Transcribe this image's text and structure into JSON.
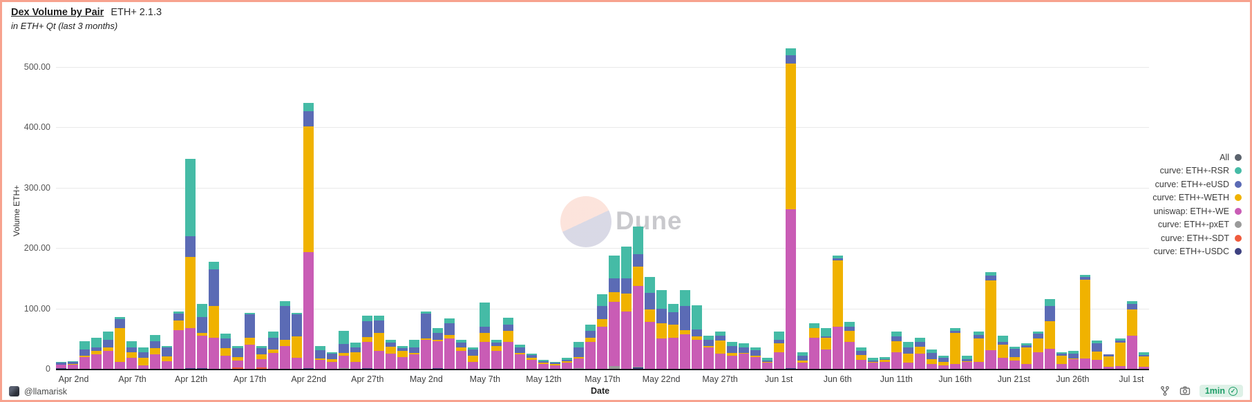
{
  "header": {
    "title": "Dex Volume by Pair",
    "version": "ETH+ 2.1.3",
    "subtitle": "in ETH+ Qt (last 3 months)"
  },
  "watermark": {
    "text": "Dune"
  },
  "footer": {
    "author_handle": "@llamarisk",
    "refresh_badge": "1min",
    "check_glyph": "✓"
  },
  "legend": {
    "items": [
      {
        "label": "All",
        "color": "#5b636d"
      },
      {
        "label": "curve: ETH+-RSR",
        "color": "#45bba6"
      },
      {
        "label": "curve: ETH+-eUSD",
        "color": "#5b6bb5"
      },
      {
        "label": "curve: ETH+-WETH",
        "color": "#f0b200"
      },
      {
        "label": "uniswap: ETH+-WE",
        "color": "#c95cb5"
      },
      {
        "label": "curve: ETH+-pxET",
        "color": "#9a9a9a"
      },
      {
        "label": "curve: ETH+-SDT",
        "color": "#ef5b3d"
      },
      {
        "label": "curve: ETH+-USDC",
        "color": "#3d4180"
      }
    ]
  },
  "chart_data": {
    "type": "bar",
    "stacked": true,
    "title": "Dex Volume by Pair ETH+ 2.1.3",
    "subtitle": "in ETH+ Qt (last 3 months)",
    "xlabel": "Date",
    "ylabel": "Volume ETH+",
    "ylim": [
      0,
      550
    ],
    "grid": true,
    "legend_position": "right",
    "yticks": [
      {
        "value": 0,
        "label": "0"
      },
      {
        "value": 100,
        "label": "100.00"
      },
      {
        "value": 200,
        "label": "200.00"
      },
      {
        "value": 300,
        "label": "300.00"
      },
      {
        "value": 400,
        "label": "400.00"
      },
      {
        "value": 500,
        "label": "500.00"
      }
    ],
    "x_ticks": [
      {
        "index": 1,
        "label": "Apr 2nd"
      },
      {
        "index": 6,
        "label": "Apr 7th"
      },
      {
        "index": 11,
        "label": "Apr 12th"
      },
      {
        "index": 16,
        "label": "Apr 17th"
      },
      {
        "index": 21,
        "label": "Apr 22nd"
      },
      {
        "index": 26,
        "label": "Apr 27th"
      },
      {
        "index": 31,
        "label": "May 2nd"
      },
      {
        "index": 36,
        "label": "May 7th"
      },
      {
        "index": 41,
        "label": "May 12th"
      },
      {
        "index": 46,
        "label": "May 17th"
      },
      {
        "index": 51,
        "label": "May 22nd"
      },
      {
        "index": 56,
        "label": "May 27th"
      },
      {
        "index": 61,
        "label": "Jun 1st"
      },
      {
        "index": 66,
        "label": "Jun 6th"
      },
      {
        "index": 71,
        "label": "Jun 11th"
      },
      {
        "index": 76,
        "label": "Jun 16th"
      },
      {
        "index": 81,
        "label": "Jun 21st"
      },
      {
        "index": 86,
        "label": "Jun 26th"
      },
      {
        "index": 91,
        "label": "Jul 1st"
      }
    ],
    "dates": [
      "Apr 1",
      "Apr 2",
      "Apr 3",
      "Apr 4",
      "Apr 5",
      "Apr 6",
      "Apr 7",
      "Apr 8",
      "Apr 9",
      "Apr 10",
      "Apr 11",
      "Apr 12",
      "Apr 13",
      "Apr 14",
      "Apr 15",
      "Apr 16",
      "Apr 17",
      "Apr 18",
      "Apr 19",
      "Apr 20",
      "Apr 21",
      "Apr 22",
      "Apr 23",
      "Apr 24",
      "Apr 25",
      "Apr 26",
      "Apr 27",
      "Apr 28",
      "Apr 29",
      "Apr 30",
      "May 1",
      "May 2",
      "May 3",
      "May 4",
      "May 5",
      "May 6",
      "May 7",
      "May 8",
      "May 9",
      "May 10",
      "May 11",
      "May 12",
      "May 13",
      "May 14",
      "May 15",
      "May 16",
      "May 17",
      "May 18",
      "May 19",
      "May 20",
      "May 21",
      "May 22",
      "May 23",
      "May 24",
      "May 25",
      "May 26",
      "May 27",
      "May 28",
      "May 29",
      "May 30",
      "May 31",
      "Jun 1",
      "Jun 2",
      "Jun 3",
      "Jun 4",
      "Jun 5",
      "Jun 6",
      "Jun 7",
      "Jun 8",
      "Jun 9",
      "Jun 10",
      "Jun 11",
      "Jun 12",
      "Jun 13",
      "Jun 14",
      "Jun 15",
      "Jun 16",
      "Jun 17",
      "Jun 18",
      "Jun 19",
      "Jun 20",
      "Jun 21",
      "Jun 22",
      "Jun 23",
      "Jun 24",
      "Jun 25",
      "Jun 26",
      "Jun 27",
      "Jun 28",
      "Jun 29",
      "Jun 30",
      "Jul 1",
      "Jul 2"
    ],
    "series": [
      {
        "name": "curve: ETH+-USDC",
        "color": "#3d4180",
        "values": [
          1,
          0,
          0,
          0,
          0,
          0,
          0,
          0,
          0,
          0,
          0,
          1,
          1,
          0,
          0,
          0,
          0,
          0,
          0,
          0,
          0,
          1,
          0,
          0,
          0,
          0,
          1,
          0,
          0,
          0,
          0,
          0,
          1,
          0,
          0,
          0,
          0,
          0,
          0,
          0,
          0,
          0,
          0,
          0,
          0,
          0,
          0,
          0,
          0,
          2,
          0,
          0,
          0,
          0,
          0,
          0,
          0,
          0,
          0,
          0,
          0,
          0,
          1,
          0,
          0,
          0,
          0,
          0,
          0,
          0,
          0,
          0,
          0,
          0,
          0,
          0,
          0,
          0,
          0,
          0,
          0,
          0,
          0,
          0,
          0,
          0,
          0,
          0,
          0,
          0,
          0,
          0,
          0
        ]
      },
      {
        "name": "curve: ETH+-SDT",
        "color": "#ef5b3d",
        "values": [
          0,
          0,
          0,
          0,
          0,
          0,
          0,
          0,
          0,
          0,
          0,
          0,
          0,
          0,
          0,
          2,
          0,
          2,
          0,
          0,
          0,
          0,
          0,
          0,
          0,
          0,
          0,
          0,
          0,
          0,
          0,
          0,
          0,
          0,
          0,
          0,
          0,
          0,
          0,
          0,
          0,
          0,
          0,
          0,
          0,
          0,
          0,
          0,
          0,
          0,
          0,
          0,
          0,
          0,
          0,
          0,
          0,
          0,
          0,
          0,
          0,
          0,
          0,
          0,
          0,
          0,
          0,
          0,
          0,
          0,
          0,
          0,
          0,
          0,
          0,
          0,
          0,
          0,
          0,
          0,
          0,
          0,
          0,
          0,
          0,
          0,
          0,
          0,
          0,
          0,
          0,
          0,
          0
        ]
      },
      {
        "name": "curve: ETH+-pxETH",
        "color": "#9a9a9a",
        "values": [
          0,
          0,
          0,
          0,
          0,
          0,
          0,
          0,
          0,
          0,
          0,
          0,
          0,
          0,
          0,
          0,
          0,
          0,
          0,
          0,
          0,
          0,
          0,
          0,
          1,
          0,
          0,
          0,
          0,
          0,
          0,
          0,
          0,
          0,
          0,
          0,
          0,
          0,
          0,
          0,
          0,
          0,
          0,
          0,
          1,
          0,
          0,
          5,
          0,
          1,
          0,
          0,
          0,
          0,
          0,
          0,
          0,
          0,
          0,
          0,
          0,
          0,
          0,
          0,
          0,
          0,
          0,
          0,
          0,
          0,
          0,
          0,
          0,
          0,
          0,
          0,
          0,
          0,
          0,
          0,
          0,
          0,
          0,
          0,
          0,
          0,
          0,
          0,
          0,
          0,
          0,
          0,
          0
        ]
      },
      {
        "name": "uniswap: ETH+-WETH",
        "color": "#c95cb5",
        "values": [
          6,
          7,
          20,
          24,
          30,
          12,
          18,
          6,
          24,
          13,
          64,
          67,
          54,
          52,
          22,
          12,
          40,
          14,
          26,
          38,
          18,
          192,
          15,
          12,
          21,
          12,
          44,
          30,
          25,
          20,
          24,
          48,
          45,
          50,
          30,
          12,
          45,
          30,
          45,
          24,
          15,
          8,
          6,
          10,
          16,
          45,
          70,
          106,
          95,
          134,
          78,
          50,
          52,
          57,
          48,
          35,
          25,
          22,
          25,
          20,
          10,
          28,
          263,
          10,
          52,
          32,
          70,
          45,
          15,
          10,
          12,
          28,
          10,
          25,
          8,
          6,
          8,
          12,
          12,
          31,
          18,
          14,
          8,
          28,
          33,
          8,
          16,
          17,
          15,
          3,
          5,
          55,
          3
        ]
      },
      {
        "name": "curve: ETH+-WETH",
        "color": "#f0b200",
        "values": [
          0,
          1,
          2,
          6,
          6,
          56,
          10,
          12,
          10,
          8,
          16,
          117,
          5,
          52,
          12,
          6,
          12,
          8,
          6,
          10,
          36,
          208,
          2,
          4,
          4,
          16,
          8,
          30,
          12,
          10,
          2,
          2,
          2,
          6,
          6,
          10,
          15,
          8,
          18,
          2,
          3,
          2,
          2,
          3,
          3,
          6,
          12,
          16,
          30,
          32,
          20,
          25,
          21,
          7,
          6,
          3,
          22,
          4,
          1,
          2,
          1,
          14,
          241,
          4,
          15,
          20,
          110,
          18,
          8,
          2,
          3,
          18,
          15,
          12,
          8,
          6,
          52,
          1,
          38,
          115,
          22,
          5,
          28,
          22,
          46,
          14,
          1,
          130,
          14,
          18,
          38,
          43,
          18
        ]
      },
      {
        "name": "curve: ETH+-eUSD",
        "color": "#5b6bb5",
        "values": [
          3,
          3,
          10,
          6,
          12,
          14,
          8,
          10,
          12,
          15,
          12,
          35,
          26,
          61,
          16,
          14,
          38,
          10,
          20,
          56,
          36,
          25,
          14,
          9,
          15,
          8,
          26,
          20,
          6,
          4,
          10,
          42,
          12,
          20,
          8,
          10,
          10,
          6,
          10,
          9,
          5,
          3,
          2,
          2,
          16,
          12,
          22,
          23,
          25,
          21,
          28,
          25,
          21,
          40,
          11,
          10,
          8,
          12,
          10,
          9,
          3,
          6,
          14,
          8,
          0,
          2,
          3,
          7,
          7,
          2,
          1,
          8,
          10,
          8,
          10,
          6,
          3,
          3,
          6,
          8,
          5,
          14,
          3,
          8,
          25,
          3,
          8,
          5,
          13,
          3,
          4,
          10,
          2
        ]
      },
      {
        "name": "curve: ETH+-RSR",
        "color": "#45bba6",
        "values": [
          2,
          2,
          14,
          16,
          14,
          4,
          10,
          8,
          10,
          2,
          3,
          127,
          22,
          12,
          8,
          4,
          3,
          4,
          10,
          8,
          3,
          14,
          7,
          3,
          22,
          7,
          9,
          8,
          5,
          4,
          12,
          3,
          8,
          8,
          4,
          3,
          40,
          4,
          12,
          5,
          2,
          2,
          2,
          3,
          9,
          10,
          19,
          38,
          52,
          45,
          26,
          30,
          13,
          26,
          40,
          7,
          7,
          7,
          6,
          4,
          4,
          14,
          11,
          6,
          8,
          14,
          5,
          8,
          5,
          4,
          4,
          8,
          10,
          7,
          6,
          4,
          5,
          6,
          6,
          6,
          10,
          4,
          3,
          4,
          11,
          3,
          5,
          3,
          5,
          0,
          3,
          4,
          4
        ]
      }
    ]
  }
}
